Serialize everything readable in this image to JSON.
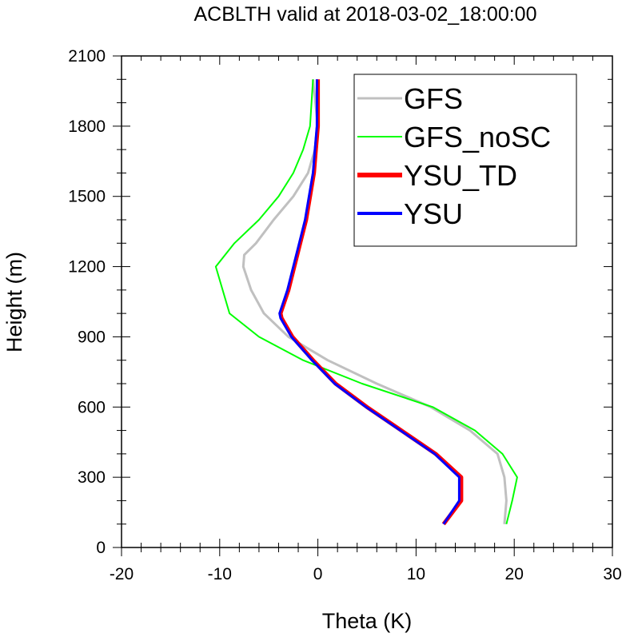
{
  "chart_data": {
    "type": "line",
    "title": "ACBLTH valid at 2018-03-02_18:00:00",
    "xlabel": "Theta (K)",
    "ylabel": "Height (m)",
    "xlim": [
      -20,
      30
    ],
    "ylim": [
      0,
      2100
    ],
    "xticks": [
      "-20",
      "-10",
      "0",
      "10",
      "20",
      "30"
    ],
    "yticks": [
      "0",
      "300",
      "600",
      "900",
      "1200",
      "1500",
      "1800",
      "2100"
    ],
    "grid": false,
    "legend_position": "top-right",
    "series": [
      {
        "name": "GFS",
        "color": "#c0c0c0",
        "x": [
          19.0,
          19.2,
          19.0,
          18.3,
          15.5,
          11.5,
          6.0,
          1.0,
          -3.0,
          -5.5,
          -6.8,
          -7.6,
          -7.5,
          -6.3,
          -4.5,
          -2.5,
          -1.0,
          -0.3,
          0.0,
          -0.5
        ],
        "y": [
          100,
          200,
          300,
          400,
          500,
          600,
          700,
          800,
          900,
          1000,
          1100,
          1200,
          1250,
          1300,
          1400,
          1500,
          1600,
          1700,
          1800,
          2000
        ]
      },
      {
        "name": "GFS_noSC",
        "color": "#00ff00",
        "x": [
          19.2,
          19.8,
          20.3,
          18.8,
          16.0,
          11.7,
          4.5,
          -1.5,
          -6.0,
          -9.0,
          -10.4,
          -8.5,
          -6.0,
          -4.0,
          -2.5,
          -1.5,
          -0.8,
          -0.5
        ],
        "y": [
          100,
          200,
          300,
          400,
          500,
          600,
          700,
          800,
          900,
          1000,
          1200,
          1300,
          1400,
          1500,
          1600,
          1700,
          1800,
          2000
        ]
      },
      {
        "name": "YSU_TD",
        "color": "#ff0000",
        "x": [
          12.8,
          14.6,
          14.6,
          12.0,
          8.5,
          5.0,
          1.8,
          -0.5,
          -2.6,
          -3.7,
          -3.8,
          -3.0,
          -1.8,
          -1.2,
          -0.8,
          -0.4,
          -0.2,
          0.0,
          0.0
        ],
        "y": [
          100,
          200,
          300,
          400,
          500,
          600,
          700,
          800,
          900,
          980,
          1000,
          1100,
          1300,
          1400,
          1500,
          1600,
          1700,
          1800,
          2000
        ]
      },
      {
        "name": "YSU",
        "color": "#0000ff",
        "x": [
          12.8,
          14.4,
          14.4,
          11.9,
          8.4,
          4.9,
          1.7,
          -0.6,
          -2.7,
          -3.8,
          -3.9,
          -3.1,
          -1.9,
          -1.3,
          -0.9,
          -0.5,
          -0.3,
          -0.1,
          -0.1
        ],
        "y": [
          100,
          200,
          300,
          400,
          500,
          600,
          700,
          800,
          900,
          980,
          1000,
          1100,
          1300,
          1400,
          1500,
          1600,
          1700,
          1800,
          2000
        ]
      }
    ]
  }
}
